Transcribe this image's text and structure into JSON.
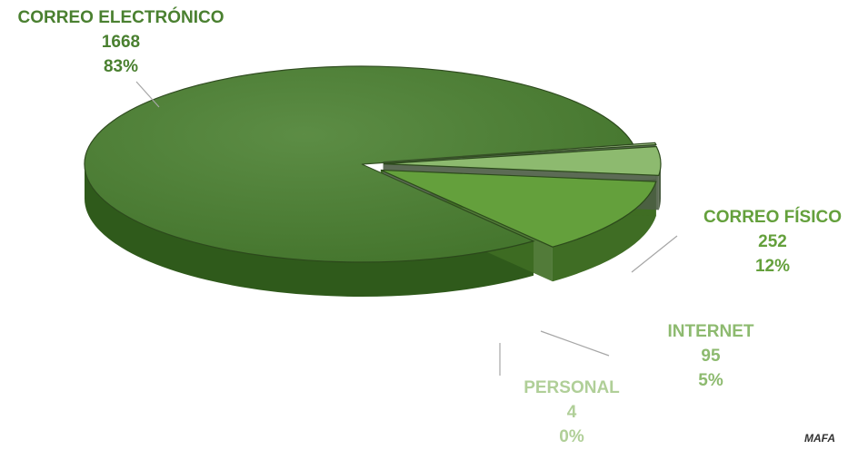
{
  "chart_data": {
    "type": "pie",
    "title": "",
    "categories": [
      "CORREO ELECTRÓNICO",
      "CORREO FÍSICO",
      "INTERNET",
      "PERSONAL"
    ],
    "values": [
      1668,
      252,
      95,
      4
    ],
    "percent_labels": [
      "83%",
      "12%",
      "5%",
      "0%"
    ],
    "colors": [
      "#4a8030",
      "#64a03c",
      "#8dba6f",
      "#b0cf98"
    ],
    "side_colors": [
      "#2f5a1b",
      "#3f6d24",
      "#4d5e45",
      "#5c6b55"
    ],
    "label_colors": [
      "#4a8030",
      "#64a03c",
      "#8dba6f",
      "#b0cf98"
    ],
    "exploded": [
      false,
      true,
      true,
      true
    ],
    "three_d": true,
    "legend": "none"
  },
  "credit": "MAFA"
}
